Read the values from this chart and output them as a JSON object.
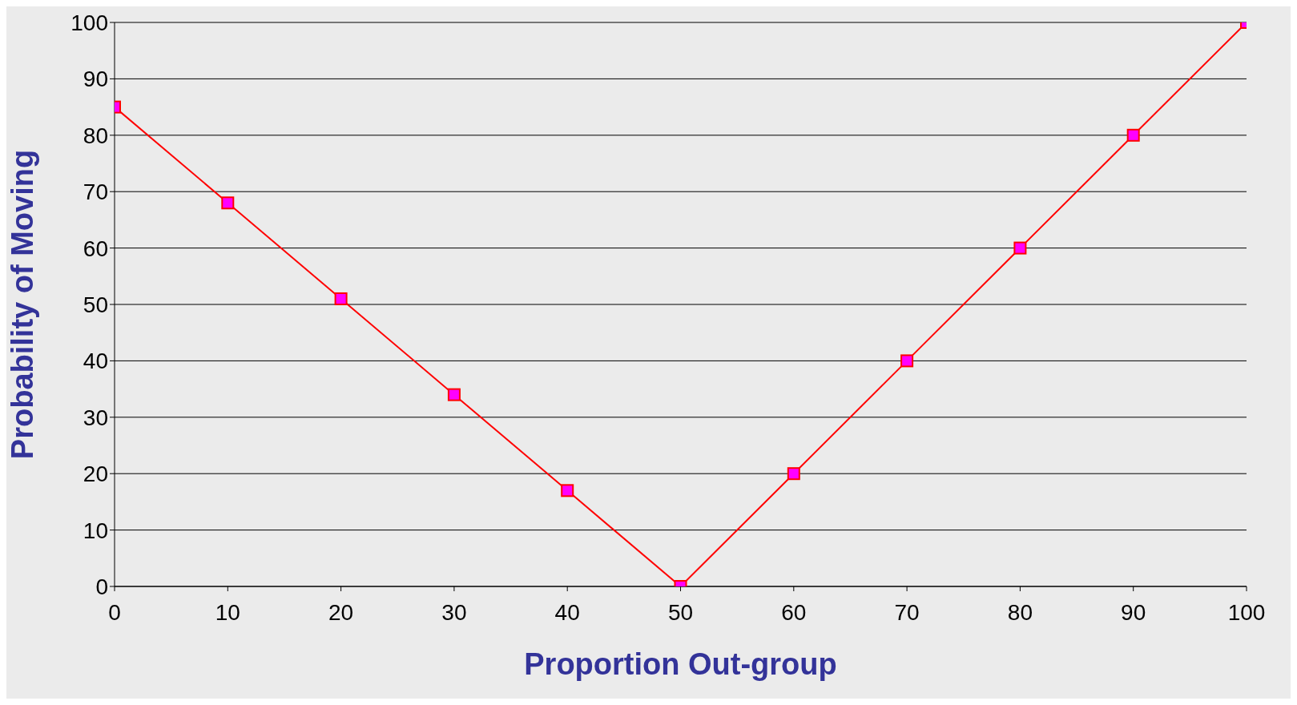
{
  "chart_data": {
    "type": "line",
    "xlabel": "Proportion Out-group",
    "ylabel": "Probability of Moving",
    "x": [
      0,
      10,
      20,
      30,
      40,
      50,
      60,
      70,
      80,
      90,
      100
    ],
    "series": [
      {
        "color": "#ff0000",
        "values": [
          85,
          68,
          51,
          34,
          17,
          0,
          20,
          40,
          60,
          80,
          100
        ]
      }
    ],
    "xlim": [
      0,
      100
    ],
    "xticks": [
      0,
      10,
      20,
      30,
      40,
      50,
      60,
      70,
      80,
      90,
      100
    ],
    "ylim": [
      0,
      100
    ],
    "yticks": [
      0,
      10,
      20,
      30,
      40,
      50,
      60,
      70,
      80,
      90,
      100
    ],
    "grid": "y",
    "marker": "square",
    "line_style": "solid",
    "legend": false
  }
}
